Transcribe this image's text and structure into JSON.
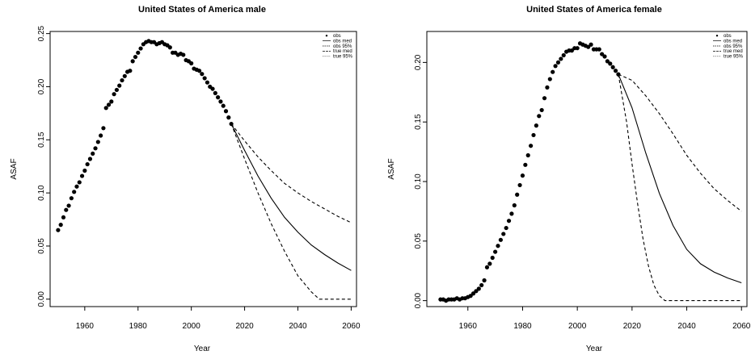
{
  "chart_data": [
    {
      "type": "line",
      "title": "United States of America male",
      "xlabel": "Year",
      "ylabel": "ASAF",
      "xlim": [
        1947,
        2062
      ],
      "ylim": [
        -0.007,
        0.252
      ],
      "xticks": [
        1960,
        1980,
        2000,
        2020,
        2040,
        2060
      ],
      "yticks": [
        0.0,
        0.05,
        0.1,
        0.15,
        0.2,
        0.25
      ],
      "ytick_labels": [
        "0.00",
        "0.05",
        "0.10",
        "0.15",
        "0.20",
        "0.25"
      ],
      "grid": false,
      "legend_position": "top-right",
      "legend": [
        {
          "label": "obs",
          "style": "point"
        },
        {
          "label": "obs med",
          "style": "solid"
        },
        {
          "label": "obs 95%",
          "style": "dashed"
        },
        {
          "label": "true med",
          "style": "longdash"
        },
        {
          "label": "true 95%",
          "style": "dotted"
        }
      ],
      "series": [
        {
          "name": "obs",
          "style": "point",
          "x": [
            1950,
            1951,
            1952,
            1953,
            1954,
            1955,
            1956,
            1957,
            1958,
            1959,
            1960,
            1961,
            1962,
            1963,
            1964,
            1965,
            1966,
            1967,
            1968,
            1969,
            1970,
            1971,
            1972,
            1973,
            1974,
            1975,
            1976,
            1977,
            1978,
            1979,
            1980,
            1981,
            1982,
            1983,
            1984,
            1985,
            1986,
            1987,
            1988,
            1989,
            1990,
            1991,
            1992,
            1993,
            1994,
            1995,
            1996,
            1997,
            1998,
            1999,
            2000,
            2001,
            2002,
            2003,
            2004,
            2005,
            2006,
            2007,
            2008,
            2009,
            2010,
            2011,
            2012,
            2013,
            2014,
            2015
          ],
          "y": [
            0.065,
            0.07,
            0.077,
            0.084,
            0.088,
            0.095,
            0.101,
            0.106,
            0.11,
            0.116,
            0.121,
            0.127,
            0.132,
            0.137,
            0.142,
            0.148,
            0.154,
            0.161,
            0.18,
            0.183,
            0.186,
            0.193,
            0.197,
            0.201,
            0.206,
            0.21,
            0.214,
            0.215,
            0.224,
            0.228,
            0.232,
            0.236,
            0.24,
            0.242,
            0.243,
            0.242,
            0.242,
            0.24,
            0.241,
            0.242,
            0.24,
            0.239,
            0.237,
            0.232,
            0.232,
            0.23,
            0.231,
            0.23,
            0.225,
            0.224,
            0.222,
            0.217,
            0.216,
            0.215,
            0.212,
            0.208,
            0.204,
            0.2,
            0.198,
            0.194,
            0.19,
            0.186,
            0.182,
            0.177,
            0.171,
            0.165
          ]
        },
        {
          "name": "obs med",
          "style": "solid",
          "x": [
            2015,
            2020,
            2025,
            2030,
            2035,
            2040,
            2045,
            2050,
            2055,
            2060
          ],
          "y": [
            0.165,
            0.14,
            0.116,
            0.095,
            0.077,
            0.063,
            0.051,
            0.042,
            0.034,
            0.027
          ]
        },
        {
          "name": "obs 95%",
          "style": "dashed",
          "x": [
            2015,
            2020,
            2025,
            2030,
            2035,
            2040,
            2045,
            2048,
            2050,
            2055,
            2060
          ],
          "y": [
            0.165,
            0.132,
            0.1,
            0.071,
            0.045,
            0.022,
            0.007,
            0.0,
            0.0,
            0.0,
            0.0
          ]
        },
        {
          "name": "obs 95%",
          "style": "dashed",
          "x": [
            2015,
            2020,
            2025,
            2030,
            2035,
            2040,
            2045,
            2050,
            2055,
            2060
          ],
          "y": [
            0.165,
            0.149,
            0.134,
            0.121,
            0.109,
            0.1,
            0.092,
            0.085,
            0.078,
            0.072
          ]
        }
      ]
    },
    {
      "type": "line",
      "title": "United States of America female",
      "xlabel": "Year",
      "ylabel": "ASAF",
      "xlim": [
        1945,
        2062
      ],
      "ylim": [
        -0.005,
        0.226
      ],
      "xticks": [
        1960,
        1980,
        2000,
        2020,
        2040,
        2060
      ],
      "yticks": [
        0.0,
        0.05,
        0.1,
        0.15,
        0.2
      ],
      "ytick_labels": [
        "0.00",
        "0.05",
        "0.10",
        "0.15",
        "0.20"
      ],
      "grid": false,
      "legend_position": "top-right",
      "legend": [
        {
          "label": "obs",
          "style": "point"
        },
        {
          "label": "obs med",
          "style": "solid"
        },
        {
          "label": "obs 95%",
          "style": "dashed"
        },
        {
          "label": "true med",
          "style": "longdash"
        },
        {
          "label": "true 95%",
          "style": "dotted"
        }
      ],
      "series": [
        {
          "name": "obs",
          "style": "point",
          "x": [
            1950,
            1951,
            1952,
            1953,
            1954,
            1955,
            1956,
            1957,
            1958,
            1959,
            1960,
            1961,
            1962,
            1963,
            1964,
            1965,
            1966,
            1967,
            1968,
            1969,
            1970,
            1971,
            1972,
            1973,
            1974,
            1975,
            1976,
            1977,
            1978,
            1979,
            1980,
            1981,
            1982,
            1983,
            1984,
            1985,
            1986,
            1987,
            1988,
            1989,
            1990,
            1991,
            1992,
            1993,
            1994,
            1995,
            1996,
            1997,
            1998,
            1999,
            2000,
            2001,
            2002,
            2003,
            2004,
            2005,
            2006,
            2007,
            2008,
            2009,
            2010,
            2011,
            2012,
            2013,
            2014,
            2015
          ],
          "y": [
            0.001,
            0.001,
            0.0,
            0.001,
            0.001,
            0.001,
            0.002,
            0.001,
            0.002,
            0.002,
            0.003,
            0.004,
            0.006,
            0.008,
            0.01,
            0.013,
            0.017,
            0.028,
            0.031,
            0.036,
            0.041,
            0.046,
            0.051,
            0.056,
            0.061,
            0.067,
            0.073,
            0.08,
            0.089,
            0.097,
            0.105,
            0.114,
            0.122,
            0.13,
            0.139,
            0.147,
            0.155,
            0.16,
            0.17,
            0.179,
            0.186,
            0.192,
            0.197,
            0.2,
            0.203,
            0.206,
            0.209,
            0.21,
            0.21,
            0.212,
            0.212,
            0.216,
            0.215,
            0.214,
            0.213,
            0.215,
            0.211,
            0.211,
            0.211,
            0.207,
            0.205,
            0.201,
            0.199,
            0.196,
            0.193,
            0.19
          ]
        },
        {
          "name": "obs med",
          "style": "solid",
          "x": [
            2015,
            2020,
            2025,
            2030,
            2035,
            2040,
            2045,
            2050,
            2055,
            2060
          ],
          "y": [
            0.19,
            0.162,
            0.124,
            0.09,
            0.063,
            0.043,
            0.031,
            0.024,
            0.019,
            0.015
          ]
        },
        {
          "name": "obs 95%",
          "style": "dashed",
          "x": [
            2015,
            2018,
            2020,
            2022,
            2024,
            2026,
            2028,
            2030,
            2032,
            2035,
            2040,
            2050,
            2060
          ],
          "y": [
            0.19,
            0.15,
            0.115,
            0.082,
            0.052,
            0.029,
            0.013,
            0.004,
            0.0,
            0.0,
            0.0,
            0.0,
            0.0
          ]
        },
        {
          "name": "obs 95%",
          "style": "dashed",
          "x": [
            2015,
            2020,
            2025,
            2030,
            2035,
            2040,
            2045,
            2050,
            2055,
            2060
          ],
          "y": [
            0.19,
            0.185,
            0.172,
            0.157,
            0.14,
            0.122,
            0.107,
            0.094,
            0.084,
            0.075
          ]
        }
      ]
    }
  ]
}
